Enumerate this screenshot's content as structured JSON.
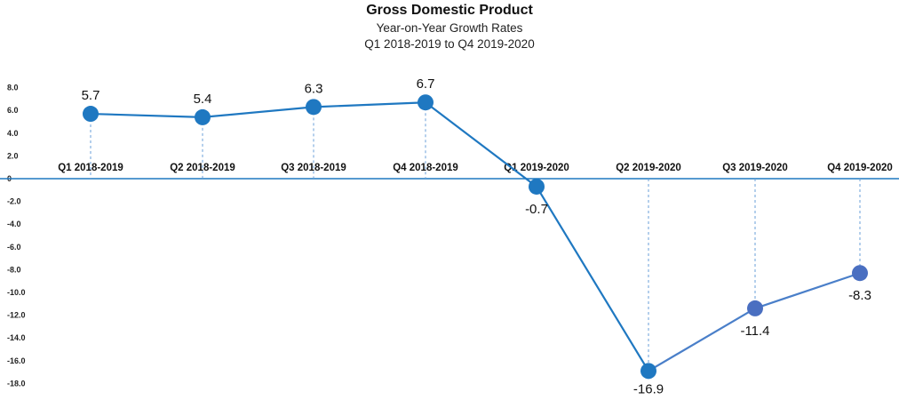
{
  "chart_data": {
    "type": "line",
    "title": "Gross Domestic Product",
    "subtitle": "Year-on-Year Growth Rates",
    "subtitle2": "Q1 2018-2019 to Q4 2019-2020",
    "categories": [
      "Q1 2018-2019",
      "Q2 2018-2019",
      "Q3 2018-2019",
      "Q4 2018-2019",
      "Q1 2019-2020",
      "Q2 2019-2020",
      "Q3 2019-2020",
      "Q4 2019-2020"
    ],
    "values": [
      5.7,
      5.4,
      6.3,
      6.7,
      -0.7,
      -16.9,
      -11.4,
      -8.3
    ],
    "data_labels": [
      "5.7",
      "5.4",
      "6.3",
      "6.7",
      "-0.7",
      "-16.9",
      "-11.4",
      "-8.3"
    ],
    "ylim": [
      -18,
      8
    ],
    "yticks": [
      {
        "value": 8,
        "label": "8.0"
      },
      {
        "value": 6,
        "label": "6.0"
      },
      {
        "value": 4,
        "label": "4.0"
      },
      {
        "value": 2,
        "label": "2.0"
      },
      {
        "value": 0,
        "label": "0"
      },
      {
        "value": -2,
        "label": "-2.0"
      },
      {
        "value": -4,
        "label": "-4.0"
      },
      {
        "value": -6,
        "label": "-6.0"
      },
      {
        "value": -8,
        "label": "-8.0"
      },
      {
        "value": -10,
        "label": "-10.0"
      },
      {
        "value": -12,
        "label": "-12.0"
      },
      {
        "value": -14,
        "label": "-14.0"
      },
      {
        "value": -16,
        "label": "-16.0"
      },
      {
        "value": -18,
        "label": "-18.0"
      }
    ],
    "grid": false,
    "legend": "none",
    "colors": {
      "line_primary": "#1f78c1",
      "line_secondary": "#4a7fc9",
      "marker_primary": "#1f78c1",
      "marker_secondary": "#4a6fc1",
      "axis": "#1f78c1",
      "drop_lines": "#6a9fd8"
    }
  }
}
